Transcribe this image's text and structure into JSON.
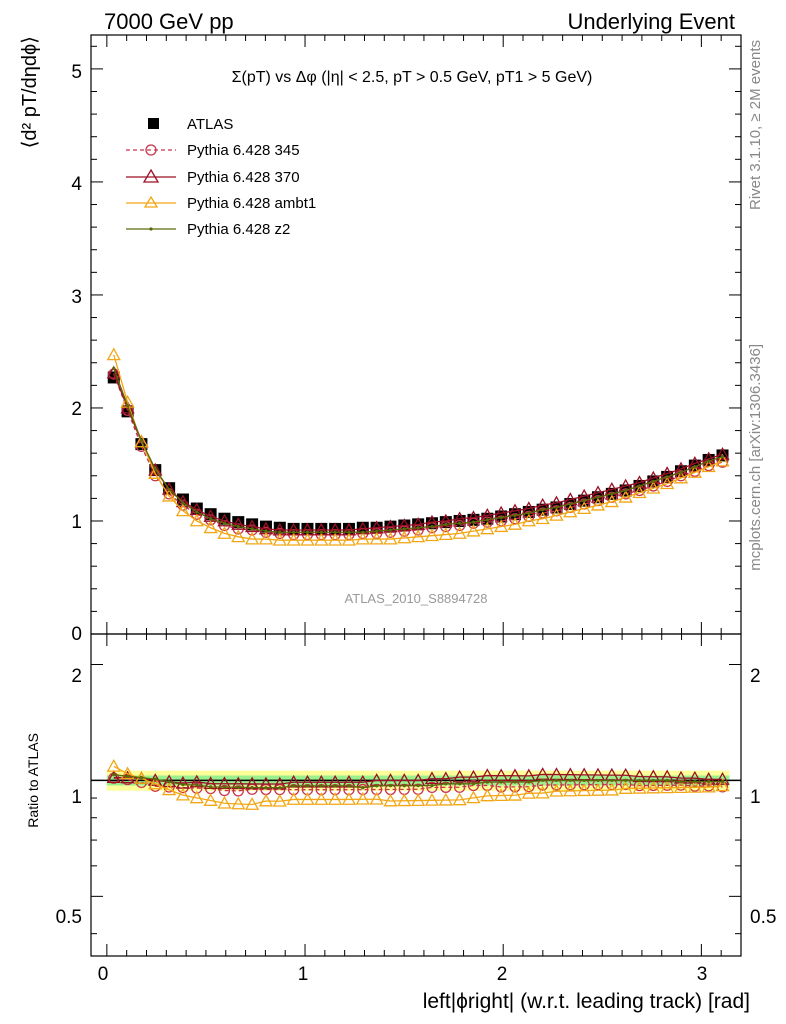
{
  "header": {
    "left": "7000 GeV pp",
    "right": "Underlying Event"
  },
  "side_labels": {
    "rivet": "Rivet 3.1.10, ≥ 2M events",
    "mcplots": "mcplots.cern.ch [arXiv:1306.3436]"
  },
  "watermark": "ATLAS_2010_S8894728",
  "chart_data": {
    "type": "scatter",
    "title": "Σ(pT) vs Δφ (|η| < 2.5, pT > 0.5 GeV, pT1 > 5 GeV)",
    "xlabel": "left|ϕright| (w.r.t. leading track) [rad]",
    "ylabel_main": "⟨d² pT/dηdϕ⟩",
    "ylabel_ratio": "Ratio to ATLAS",
    "xlim": [
      -0.08,
      3.2
    ],
    "ylim_main": [
      0,
      5.3
    ],
    "ylim_ratio": [
      0.35,
      2.4
    ],
    "ratio_scale": "log",
    "x_ticks": [
      "0",
      "1",
      "2",
      "3"
    ],
    "y_ticks_main": [
      "0",
      "1",
      "2",
      "3",
      "4",
      "5"
    ],
    "y_ticks_ratio": [
      "0.5",
      "1",
      "2"
    ],
    "legend_position": "top-left",
    "x": [
      0.0349,
      0.1047,
      0.1745,
      0.2443,
      0.3142,
      0.384,
      0.4538,
      0.5236,
      0.5934,
      0.6632,
      0.733,
      0.8029,
      0.8727,
      0.9425,
      1.0123,
      1.0821,
      1.1519,
      1.2217,
      1.2915,
      1.3614,
      1.4312,
      1.501,
      1.5708,
      1.6406,
      1.7104,
      1.7802,
      1.85,
      1.9199,
      1.9897,
      2.0595,
      2.1293,
      2.1991,
      2.2689,
      2.3387,
      2.4086,
      2.4784,
      2.5482,
      2.618,
      2.6878,
      2.7576,
      2.8274,
      2.8972,
      2.9671,
      3.0369,
      3.1067
    ],
    "series": [
      {
        "name": "ATLAS",
        "color": "#000000",
        "marker": "square",
        "line": "none",
        "values": [
          2.27,
          1.97,
          1.68,
          1.45,
          1.29,
          1.19,
          1.11,
          1.06,
          1.02,
          0.99,
          0.97,
          0.95,
          0.94,
          0.93,
          0.93,
          0.93,
          0.93,
          0.93,
          0.94,
          0.94,
          0.95,
          0.96,
          0.97,
          0.98,
          0.99,
          1.0,
          1.01,
          1.02,
          1.04,
          1.06,
          1.08,
          1.1,
          1.12,
          1.15,
          1.18,
          1.21,
          1.24,
          1.27,
          1.31,
          1.35,
          1.39,
          1.44,
          1.49,
          1.54,
          1.58
        ]
      },
      {
        "name": "Pythia 6.428 345",
        "color": "#c8344d",
        "marker": "circle-open",
        "line": "dashed",
        "values": [
          2.3,
          1.98,
          1.66,
          1.4,
          1.24,
          1.14,
          1.06,
          1.01,
          0.96,
          0.93,
          0.92,
          0.9,
          0.89,
          0.88,
          0.88,
          0.88,
          0.88,
          0.88,
          0.89,
          0.89,
          0.9,
          0.91,
          0.92,
          0.94,
          0.95,
          0.96,
          0.98,
          0.99,
          1.0,
          1.02,
          1.04,
          1.07,
          1.09,
          1.12,
          1.15,
          1.18,
          1.21,
          1.24,
          1.27,
          1.31,
          1.35,
          1.4,
          1.44,
          1.49,
          1.52
        ]
      },
      {
        "name": "Pythia 6.428 370",
        "color": "#9a1025",
        "marker": "triangle-open",
        "line": "solid",
        "values": [
          2.31,
          2.0,
          1.7,
          1.45,
          1.28,
          1.17,
          1.1,
          1.04,
          1.0,
          0.97,
          0.95,
          0.93,
          0.92,
          0.92,
          0.92,
          0.92,
          0.92,
          0.92,
          0.93,
          0.94,
          0.95,
          0.96,
          0.97,
          0.99,
          1.0,
          1.02,
          1.03,
          1.05,
          1.07,
          1.09,
          1.11,
          1.14,
          1.16,
          1.19,
          1.22,
          1.25,
          1.28,
          1.31,
          1.34,
          1.38,
          1.42,
          1.46,
          1.51,
          1.55,
          1.59
        ]
      },
      {
        "name": "Pythia 6.428 ambt1",
        "color": "#f2a614",
        "marker": "triangle-open",
        "line": "solid",
        "values": [
          2.47,
          2.05,
          1.7,
          1.42,
          1.22,
          1.09,
          1.0,
          0.94,
          0.89,
          0.86,
          0.84,
          0.84,
          0.83,
          0.83,
          0.83,
          0.83,
          0.83,
          0.83,
          0.84,
          0.84,
          0.84,
          0.85,
          0.86,
          0.87,
          0.88,
          0.89,
          0.91,
          0.93,
          0.95,
          0.97,
          1.0,
          1.02,
          1.05,
          1.08,
          1.11,
          1.14,
          1.17,
          1.21,
          1.25,
          1.29,
          1.33,
          1.38,
          1.43,
          1.48,
          1.53
        ]
      },
      {
        "name": "Pythia 6.428 z2",
        "color": "#5a6b0a",
        "marker": "dot",
        "line": "solid",
        "values": [
          2.35,
          2.02,
          1.71,
          1.46,
          1.28,
          1.16,
          1.08,
          1.02,
          0.98,
          0.95,
          0.93,
          0.91,
          0.9,
          0.9,
          0.9,
          0.9,
          0.9,
          0.9,
          0.9,
          0.91,
          0.92,
          0.93,
          0.94,
          0.95,
          0.97,
          0.98,
          0.99,
          1.01,
          1.03,
          1.05,
          1.07,
          1.1,
          1.12,
          1.15,
          1.18,
          1.21,
          1.24,
          1.27,
          1.31,
          1.35,
          1.39,
          1.43,
          1.48,
          1.53,
          1.57
        ]
      }
    ],
    "bands": [
      {
        "color": "#ffff88",
        "half_width": 0.06
      },
      {
        "color": "#88ee88",
        "half_width": 0.03
      }
    ]
  }
}
